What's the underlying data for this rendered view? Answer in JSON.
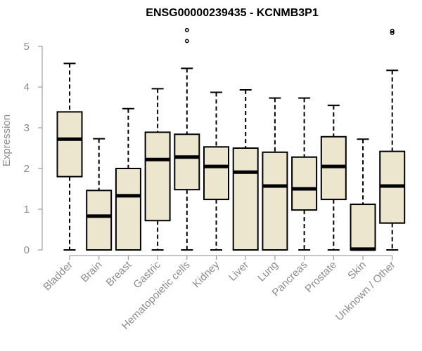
{
  "chart_data": {
    "type": "boxplot",
    "title": "ENSG00000239435 - KCNMB3P1",
    "ylabel": "Expression",
    "xlabel": "",
    "ylim": [
      0,
      5.5
    ],
    "yticks": [
      0,
      1,
      2,
      3,
      4,
      5
    ],
    "grid": false,
    "box_color": "#ede6cf",
    "categories": [
      "Bladder",
      "Brain",
      "Breast",
      "Gastric",
      "Hematopoietic cells",
      "Kidney",
      "Liver",
      "Lung",
      "Pancreas",
      "Prostate",
      "Skin",
      "Unknown / Other"
    ],
    "boxes": [
      {
        "min": 0,
        "q1": 1.8,
        "median": 2.72,
        "q3": 3.39,
        "max": 4.58,
        "outliers": []
      },
      {
        "min": 0,
        "q1": 0,
        "median": 0.83,
        "q3": 1.46,
        "max": 2.73,
        "outliers": []
      },
      {
        "min": 0,
        "q1": 0,
        "median": 1.33,
        "q3": 2.0,
        "max": 3.47,
        "outliers": []
      },
      {
        "min": 0,
        "q1": 0.72,
        "median": 2.22,
        "q3": 2.89,
        "max": 3.96,
        "outliers": []
      },
      {
        "min": 0,
        "q1": 1.48,
        "median": 2.28,
        "q3": 2.84,
        "max": 4.46,
        "outliers": [
          5.13,
          5.4
        ]
      },
      {
        "min": 0,
        "q1": 1.24,
        "median": 2.05,
        "q3": 2.53,
        "max": 3.87,
        "outliers": []
      },
      {
        "min": 0,
        "q1": 0,
        "median": 1.91,
        "q3": 2.5,
        "max": 3.93,
        "outliers": []
      },
      {
        "min": 0,
        "q1": 0,
        "median": 1.57,
        "q3": 2.4,
        "max": 3.73,
        "outliers": []
      },
      {
        "min": 0,
        "q1": 0.98,
        "median": 1.5,
        "q3": 2.28,
        "max": 3.73,
        "outliers": []
      },
      {
        "min": 0,
        "q1": 1.24,
        "median": 2.05,
        "q3": 2.78,
        "max": 3.55,
        "outliers": []
      },
      {
        "min": 0,
        "q1": 0,
        "median": 0.02,
        "q3": 1.12,
        "max": 2.72,
        "outliers": []
      },
      {
        "min": 0,
        "q1": 0.66,
        "median": 1.57,
        "q3": 2.42,
        "max": 4.41,
        "outliers": [
          5.33,
          5.38
        ]
      }
    ]
  }
}
